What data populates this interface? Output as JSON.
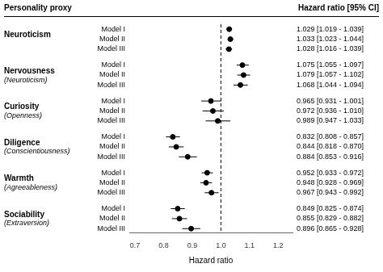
{
  "chart_data": {
    "type": "forest",
    "title": "Personality proxy",
    "column_title": "Hazard ratio [95% CI]",
    "xlabel": "Hazard ratio",
    "xlim": [
      0.68,
      1.25
    ],
    "xticks": [
      {
        "value": 0.7,
        "label": "0.7"
      },
      {
        "value": 0.8,
        "label": "0.8"
      },
      {
        "value": 0.9,
        "label": "0.9"
      },
      {
        "value": 1.0,
        "label": "1.0"
      },
      {
        "value": 1.1,
        "label": "1.1"
      },
      {
        "value": 1.2,
        "label": "1.2"
      }
    ],
    "reference_line": 1.0,
    "color": "#000000",
    "grid": false,
    "data_labels": true,
    "groups": [
      {
        "name": "Neuroticism",
        "categories": [
          "Model I",
          "Model II",
          "Model III"
        ],
        "values": [
          1.029,
          1.033,
          1.028
        ],
        "ci_low": [
          1.019,
          1.023,
          1.016
        ],
        "ci_high": [
          1.039,
          1.044,
          1.039
        ],
        "value_labels": [
          "1.029 [1.019 - 1.039]",
          "1.033 [1.023 - 1.044]",
          "1.028 [1.016 - 1.039]"
        ]
      },
      {
        "name": "Nervousness",
        "subname": "(Neuroticism)",
        "categories": [
          "Model I",
          "Model II",
          "Model III"
        ],
        "values": [
          1.075,
          1.079,
          1.068
        ],
        "ci_low": [
          1.055,
          1.057,
          1.044
        ],
        "ci_high": [
          1.097,
          1.102,
          1.094
        ],
        "value_labels": [
          "1.075 [1.055 - 1.097]",
          "1.079 [1.057 - 1.102]",
          "1.068 [1.044 - 1.094]"
        ]
      },
      {
        "name": "Curiosity",
        "subname": "(Openness)",
        "categories": [
          "Model I",
          "Model II",
          "Model III"
        ],
        "values": [
          0.965,
          0.972,
          0.989
        ],
        "ci_low": [
          0.931,
          0.936,
          0.947
        ],
        "ci_high": [
          1.001,
          1.01,
          1.033
        ],
        "value_labels": [
          "0.965 [0.931 - 1.001]",
          "0.972 [0.936 - 1.010]",
          "0.989 [0.947 - 1.033]"
        ]
      },
      {
        "name": "Diligence",
        "subname": "(Conscientiousness)",
        "categories": [
          "Model I",
          "Model II",
          "Model III"
        ],
        "values": [
          0.832,
          0.844,
          0.884
        ],
        "ci_low": [
          0.808,
          0.818,
          0.853
        ],
        "ci_high": [
          0.857,
          0.87,
          0.916
        ],
        "value_labels": [
          "0.832 [0.808 - 0.857]",
          "0.844 [0.818 - 0.870]",
          "0.884 [0.853 - 0.916]"
        ]
      },
      {
        "name": "Warmth",
        "subname": "(Agreeableness)",
        "categories": [
          "Model I",
          "Model II",
          "Model III"
        ],
        "values": [
          0.952,
          0.948,
          0.967
        ],
        "ci_low": [
          0.933,
          0.928,
          0.943
        ],
        "ci_high": [
          0.972,
          0.969,
          0.992
        ],
        "value_labels": [
          "0.952 [0.933 - 0.972]",
          "0.948 [0.928 - 0.969]",
          "0.967 [0.943 - 0.992]"
        ]
      },
      {
        "name": "Sociability",
        "subname": "(Extraversion)",
        "categories": [
          "Model I",
          "Model II",
          "Model III"
        ],
        "values": [
          0.849,
          0.855,
          0.896
        ],
        "ci_low": [
          0.825,
          0.829,
          0.865
        ],
        "ci_high": [
          0.874,
          0.882,
          0.928
        ],
        "value_labels": [
          "0.849 [0.825 - 0.874]",
          "0.855 [0.829 - 0.882]",
          "0.896 [0.865 - 0.928]"
        ]
      }
    ]
  }
}
